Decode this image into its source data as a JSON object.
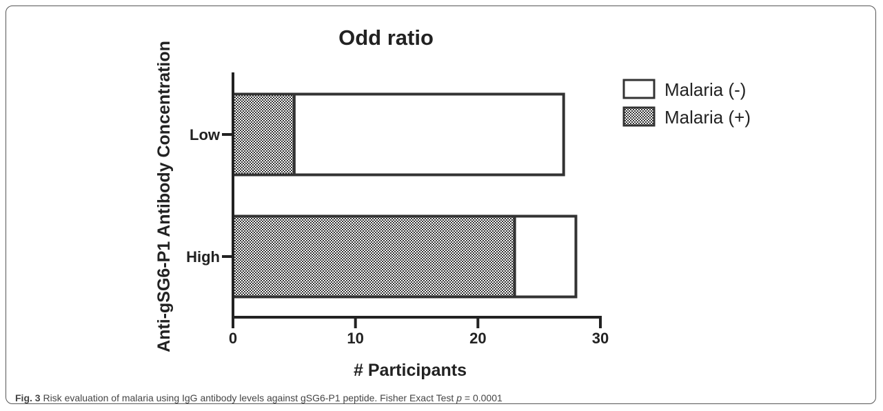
{
  "chart_data": {
    "type": "bar",
    "orientation": "horizontal",
    "stacked": true,
    "title": "Odd ratio",
    "xlabel": "# Participants",
    "ylabel": "Anti-gSG6-P1 Antibody Concentration",
    "categories": [
      "Low",
      "High"
    ],
    "series": [
      {
        "name": "Malaria (+)",
        "values": [
          5,
          23
        ],
        "fill": "checkered",
        "color": "#333333"
      },
      {
        "name": "Malaria (-)",
        "values": [
          22,
          5
        ],
        "fill": "open",
        "color": "#ffffff"
      }
    ],
    "xlim": [
      0,
      30
    ],
    "xticks": [
      0,
      10,
      20,
      30
    ],
    "legend_order": [
      "Malaria (-)",
      "Malaria (+)"
    ],
    "legend_position": "right",
    "grid": false
  },
  "caption": {
    "label": "Fig. 3",
    "text": "Risk evaluation of malaria using IgG antibody levels against gSG6-P1 peptide. Fisher Exact Test ",
    "p_symbol": "p",
    "p_value": " = 0.0001"
  }
}
